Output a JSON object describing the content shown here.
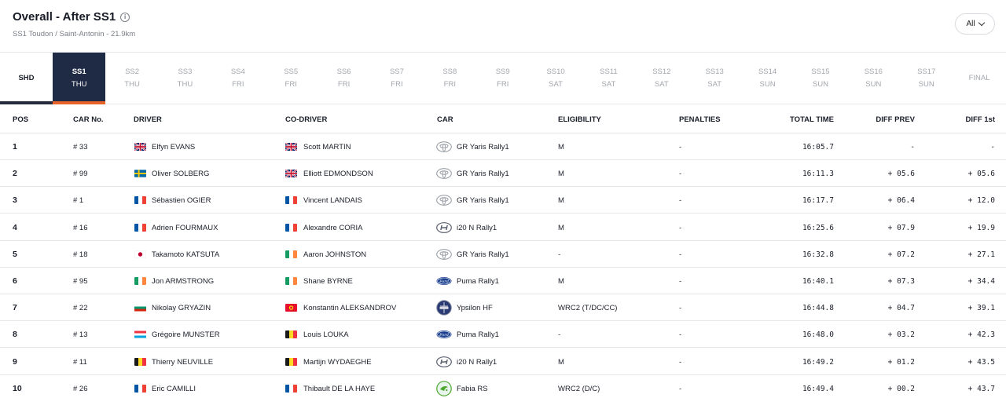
{
  "header": {
    "title": "Overall - After SS1",
    "subtitle": "SS1 Toudon / Saint-Antonin - 21.9km",
    "filter_label": "All"
  },
  "tabs": [
    {
      "label": "SHD",
      "day": ""
    },
    {
      "label": "SS1",
      "day": "THU"
    },
    {
      "label": "SS2",
      "day": "THU"
    },
    {
      "label": "SS3",
      "day": "THU"
    },
    {
      "label": "SS4",
      "day": "FRI"
    },
    {
      "label": "SS5",
      "day": "FRI"
    },
    {
      "label": "SS6",
      "day": "FRI"
    },
    {
      "label": "SS7",
      "day": "FRI"
    },
    {
      "label": "SS8",
      "day": "FRI"
    },
    {
      "label": "SS9",
      "day": "FRI"
    },
    {
      "label": "SS10",
      "day": "SAT"
    },
    {
      "label": "SS11",
      "day": "SAT"
    },
    {
      "label": "SS12",
      "day": "SAT"
    },
    {
      "label": "SS13",
      "day": "SAT"
    },
    {
      "label": "SS14",
      "day": "SUN"
    },
    {
      "label": "SS15",
      "day": "SUN"
    },
    {
      "label": "SS16",
      "day": "SUN"
    },
    {
      "label": "SS17",
      "day": "SUN"
    },
    {
      "label": "FINAL",
      "day": ""
    }
  ],
  "columns": {
    "pos": "POS",
    "car_no": "CAR No.",
    "driver": "DRIVER",
    "co_driver": "CO-DRIVER",
    "car": "CAR",
    "eligibility": "ELIGIBILITY",
    "penalties": "PENALTIES",
    "total_time": "TOTAL TIME",
    "diff_prev": "DIFF PREV",
    "diff_first": "DIFF 1st"
  },
  "rows": [
    {
      "pos": "1",
      "car_no": "# 33",
      "driver": "Elfyn EVANS",
      "driver_flag": "flag-gb",
      "co_driver": "Scott MARTIN",
      "co_flag": "flag-gb",
      "car": "GR Yaris Rally1",
      "car_logo": "toyota-logo",
      "eligibility": "M",
      "penalties": "-",
      "total_time": "16:05.7",
      "diff_prev": "-",
      "diff_first": "-"
    },
    {
      "pos": "2",
      "car_no": "# 99",
      "driver": "Oliver SOLBERG",
      "driver_flag": "flag-se",
      "co_driver": "Elliott EDMONDSON",
      "co_flag": "flag-gb",
      "car": "GR Yaris Rally1",
      "car_logo": "toyota-logo",
      "eligibility": "M",
      "penalties": "-",
      "total_time": "16:11.3",
      "diff_prev": "+ 05.6",
      "diff_first": "+ 05.6"
    },
    {
      "pos": "3",
      "car_no": "# 1",
      "driver": "Sébastien OGIER",
      "driver_flag": "flag-fr",
      "co_driver": "Vincent LANDAIS",
      "co_flag": "flag-fr",
      "car": "GR Yaris Rally1",
      "car_logo": "toyota-logo",
      "eligibility": "M",
      "penalties": "-",
      "total_time": "16:17.7",
      "diff_prev": "+ 06.4",
      "diff_first": "+ 12.0"
    },
    {
      "pos": "4",
      "car_no": "# 16",
      "driver": "Adrien FOURMAUX",
      "driver_flag": "flag-fr",
      "co_driver": "Alexandre CORIA",
      "co_flag": "flag-fr",
      "car": "i20 N Rally1",
      "car_logo": "hyundai-logo",
      "eligibility": "M",
      "penalties": "-",
      "total_time": "16:25.6",
      "diff_prev": "+ 07.9",
      "diff_first": "+ 19.9"
    },
    {
      "pos": "5",
      "car_no": "# 18",
      "driver": "Takamoto KATSUTA",
      "driver_flag": "flag-jp",
      "co_driver": "Aaron JOHNSTON",
      "co_flag": "flag-ie",
      "car": "GR Yaris Rally1",
      "car_logo": "toyota-logo",
      "eligibility": "-",
      "penalties": "-",
      "total_time": "16:32.8",
      "diff_prev": "+ 07.2",
      "diff_first": "+ 27.1"
    },
    {
      "pos": "6",
      "car_no": "# 95",
      "driver": "Jon ARMSTRONG",
      "driver_flag": "flag-ie",
      "co_driver": "Shane BYRNE",
      "co_flag": "flag-ie",
      "car": "Puma Rally1",
      "car_logo": "ford-logo",
      "eligibility": "M",
      "penalties": "-",
      "total_time": "16:40.1",
      "diff_prev": "+ 07.3",
      "diff_first": "+ 34.4"
    },
    {
      "pos": "7",
      "car_no": "# 22",
      "driver": "Nikolay GRYAZIN",
      "driver_flag": "flag-bg",
      "co_driver": "Konstantin ALEKSANDROV",
      "co_flag": "flag-kg",
      "car": "Ypsilon HF",
      "car_logo": "lancia-logo",
      "eligibility": "WRC2 (T/DC/CC)",
      "penalties": "-",
      "total_time": "16:44.8",
      "diff_prev": "+ 04.7",
      "diff_first": "+ 39.1"
    },
    {
      "pos": "8",
      "car_no": "# 13",
      "driver": "Grégoire MUNSTER",
      "driver_flag": "flag-lu",
      "co_driver": "Louis LOUKA",
      "co_flag": "flag-be",
      "car": "Puma Rally1",
      "car_logo": "ford-logo",
      "eligibility": "-",
      "penalties": "-",
      "total_time": "16:48.0",
      "diff_prev": "+ 03.2",
      "diff_first": "+ 42.3"
    },
    {
      "pos": "9",
      "car_no": "# 11",
      "driver": "Thierry NEUVILLE",
      "driver_flag": "flag-be",
      "co_driver": "Martijn WYDAEGHE",
      "co_flag": "flag-be",
      "car": "i20 N Rally1",
      "car_logo": "hyundai-logo",
      "eligibility": "M",
      "penalties": "-",
      "total_time": "16:49.2",
      "diff_prev": "+ 01.2",
      "diff_first": "+ 43.5"
    },
    {
      "pos": "10",
      "car_no": "# 26",
      "driver": "Eric CAMILLI",
      "driver_flag": "flag-fr",
      "co_driver": "Thibault DE LA HAYE",
      "co_flag": "flag-fr",
      "car": "Fabia RS",
      "car_logo": "skoda-logo",
      "eligibility": "WRC2 (D/C)",
      "penalties": "-",
      "total_time": "16:49.4",
      "diff_prev": "+ 00.2",
      "diff_first": "+ 43.7"
    }
  ],
  "colors": {
    "active_tab_bg": "#1f2a44",
    "active_tab_underline": "#e8632a",
    "shd_underline": "#252b3d",
    "muted_text": "#a3a6ad"
  }
}
